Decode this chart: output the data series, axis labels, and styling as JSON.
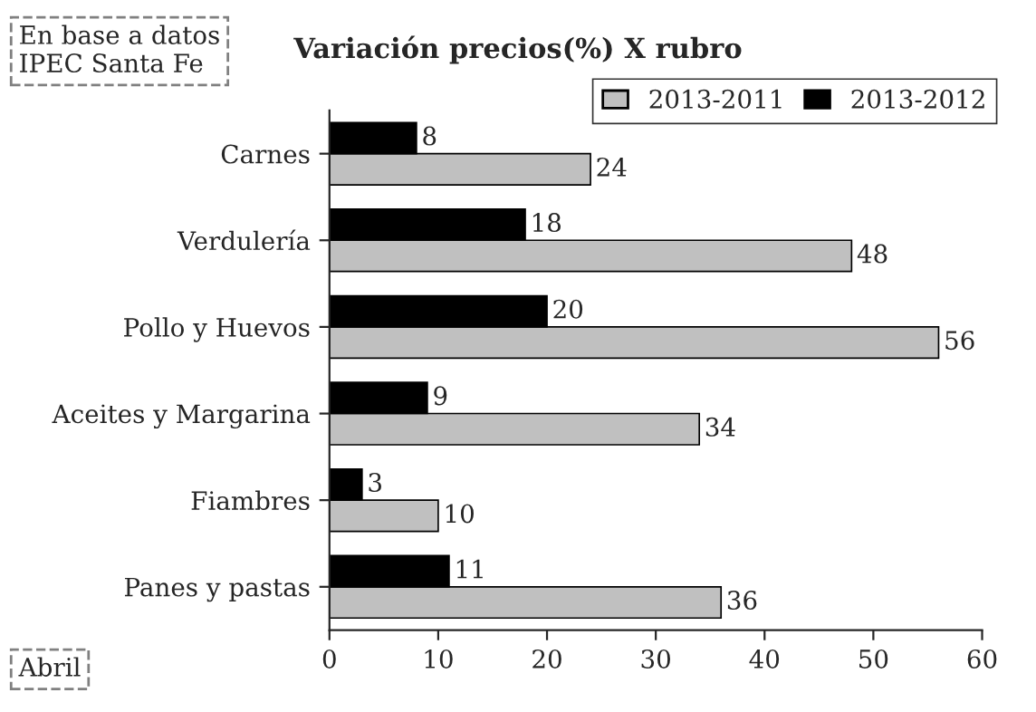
{
  "chart_data": {
    "type": "bar",
    "orientation": "horizontal",
    "title": "Variación precios(%) X rubro",
    "categories": [
      "Carnes",
      "Verdulería",
      "Pollo y Huevos",
      "Aceites y Margarina",
      "Fiambres",
      "Panes y pastas"
    ],
    "series": [
      {
        "name": "2013-2011",
        "color": "#c0c0c0",
        "values": [
          24,
          48,
          56,
          34,
          10,
          36
        ]
      },
      {
        "name": "2013-2012",
        "color": "#000000",
        "values": [
          8,
          18,
          20,
          9,
          3,
          11
        ]
      }
    ],
    "xlim": [
      0,
      60
    ],
    "xticks": [
      0,
      10,
      20,
      30,
      40,
      50,
      60
    ],
    "data_labels": true,
    "legend": "top right",
    "grid": false,
    "annotations": [
      "En base a datos\nIPEC Santa Fe",
      "Abril"
    ]
  }
}
